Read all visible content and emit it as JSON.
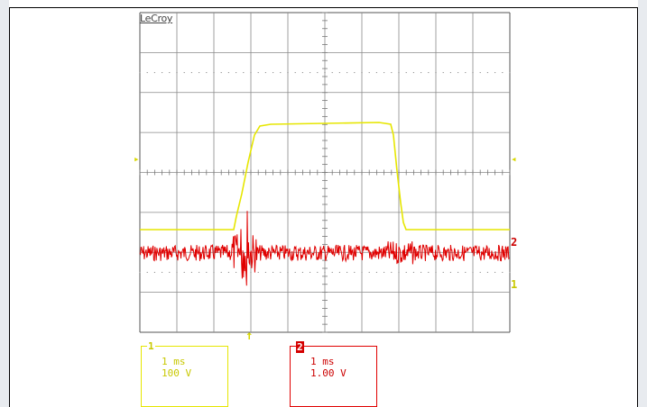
{
  "brand": "LeCroy",
  "channels": [
    {
      "id": "1",
      "timebase": "1 ms",
      "scale": "100 V",
      "color": "#e6e600",
      "label": "1"
    },
    {
      "id": "2",
      "timebase": "1 ms",
      "scale": "1.00 V",
      "color": "#e00000",
      "label": "2"
    }
  ],
  "markers": {
    "ch1_right": "1",
    "ch2_right": "2",
    "trigger_arrow": "↑",
    "level_left": "▸",
    "level_right": "◂"
  }
}
